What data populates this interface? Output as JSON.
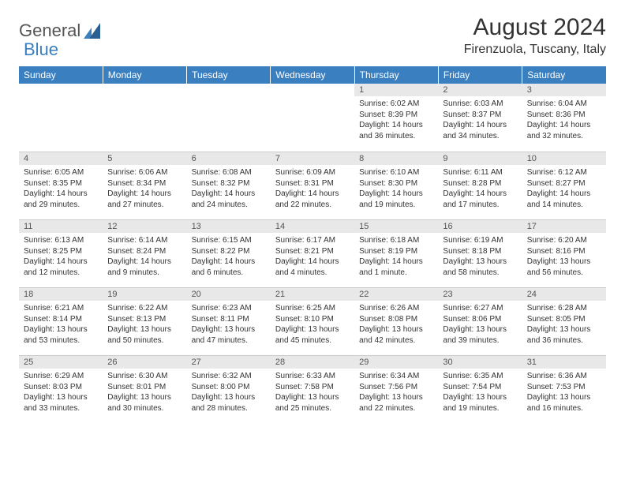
{
  "logo": {
    "brand_first": "General",
    "brand_second": "Blue"
  },
  "title": "August 2024",
  "location": "Firenzuola, Tuscany, Italy",
  "colors": {
    "header_bg": "#3a7fc0",
    "header_text": "#ffffff",
    "daynum_bg": "#e8e8e8",
    "body_text": "#333333",
    "logo_gray": "#555555",
    "logo_blue": "#3a7fc0"
  },
  "weekdays": [
    "Sunday",
    "Monday",
    "Tuesday",
    "Wednesday",
    "Thursday",
    "Friday",
    "Saturday"
  ],
  "weeks": [
    [
      null,
      null,
      null,
      null,
      {
        "n": "1",
        "sr": "6:02 AM",
        "ss": "8:39 PM",
        "dl": "14 hours and 36 minutes."
      },
      {
        "n": "2",
        "sr": "6:03 AM",
        "ss": "8:37 PM",
        "dl": "14 hours and 34 minutes."
      },
      {
        "n": "3",
        "sr": "6:04 AM",
        "ss": "8:36 PM",
        "dl": "14 hours and 32 minutes."
      }
    ],
    [
      {
        "n": "4",
        "sr": "6:05 AM",
        "ss": "8:35 PM",
        "dl": "14 hours and 29 minutes."
      },
      {
        "n": "5",
        "sr": "6:06 AM",
        "ss": "8:34 PM",
        "dl": "14 hours and 27 minutes."
      },
      {
        "n": "6",
        "sr": "6:08 AM",
        "ss": "8:32 PM",
        "dl": "14 hours and 24 minutes."
      },
      {
        "n": "7",
        "sr": "6:09 AM",
        "ss": "8:31 PM",
        "dl": "14 hours and 22 minutes."
      },
      {
        "n": "8",
        "sr": "6:10 AM",
        "ss": "8:30 PM",
        "dl": "14 hours and 19 minutes."
      },
      {
        "n": "9",
        "sr": "6:11 AM",
        "ss": "8:28 PM",
        "dl": "14 hours and 17 minutes."
      },
      {
        "n": "10",
        "sr": "6:12 AM",
        "ss": "8:27 PM",
        "dl": "14 hours and 14 minutes."
      }
    ],
    [
      {
        "n": "11",
        "sr": "6:13 AM",
        "ss": "8:25 PM",
        "dl": "14 hours and 12 minutes."
      },
      {
        "n": "12",
        "sr": "6:14 AM",
        "ss": "8:24 PM",
        "dl": "14 hours and 9 minutes."
      },
      {
        "n": "13",
        "sr": "6:15 AM",
        "ss": "8:22 PM",
        "dl": "14 hours and 6 minutes."
      },
      {
        "n": "14",
        "sr": "6:17 AM",
        "ss": "8:21 PM",
        "dl": "14 hours and 4 minutes."
      },
      {
        "n": "15",
        "sr": "6:18 AM",
        "ss": "8:19 PM",
        "dl": "14 hours and 1 minute."
      },
      {
        "n": "16",
        "sr": "6:19 AM",
        "ss": "8:18 PM",
        "dl": "13 hours and 58 minutes."
      },
      {
        "n": "17",
        "sr": "6:20 AM",
        "ss": "8:16 PM",
        "dl": "13 hours and 56 minutes."
      }
    ],
    [
      {
        "n": "18",
        "sr": "6:21 AM",
        "ss": "8:14 PM",
        "dl": "13 hours and 53 minutes."
      },
      {
        "n": "19",
        "sr": "6:22 AM",
        "ss": "8:13 PM",
        "dl": "13 hours and 50 minutes."
      },
      {
        "n": "20",
        "sr": "6:23 AM",
        "ss": "8:11 PM",
        "dl": "13 hours and 47 minutes."
      },
      {
        "n": "21",
        "sr": "6:25 AM",
        "ss": "8:10 PM",
        "dl": "13 hours and 45 minutes."
      },
      {
        "n": "22",
        "sr": "6:26 AM",
        "ss": "8:08 PM",
        "dl": "13 hours and 42 minutes."
      },
      {
        "n": "23",
        "sr": "6:27 AM",
        "ss": "8:06 PM",
        "dl": "13 hours and 39 minutes."
      },
      {
        "n": "24",
        "sr": "6:28 AM",
        "ss": "8:05 PM",
        "dl": "13 hours and 36 minutes."
      }
    ],
    [
      {
        "n": "25",
        "sr": "6:29 AM",
        "ss": "8:03 PM",
        "dl": "13 hours and 33 minutes."
      },
      {
        "n": "26",
        "sr": "6:30 AM",
        "ss": "8:01 PM",
        "dl": "13 hours and 30 minutes."
      },
      {
        "n": "27",
        "sr": "6:32 AM",
        "ss": "8:00 PM",
        "dl": "13 hours and 28 minutes."
      },
      {
        "n": "28",
        "sr": "6:33 AM",
        "ss": "7:58 PM",
        "dl": "13 hours and 25 minutes."
      },
      {
        "n": "29",
        "sr": "6:34 AM",
        "ss": "7:56 PM",
        "dl": "13 hours and 22 minutes."
      },
      {
        "n": "30",
        "sr": "6:35 AM",
        "ss": "7:54 PM",
        "dl": "13 hours and 19 minutes."
      },
      {
        "n": "31",
        "sr": "6:36 AM",
        "ss": "7:53 PM",
        "dl": "13 hours and 16 minutes."
      }
    ]
  ],
  "labels": {
    "sunrise": "Sunrise:",
    "sunset": "Sunset:",
    "daylight": "Daylight:"
  }
}
